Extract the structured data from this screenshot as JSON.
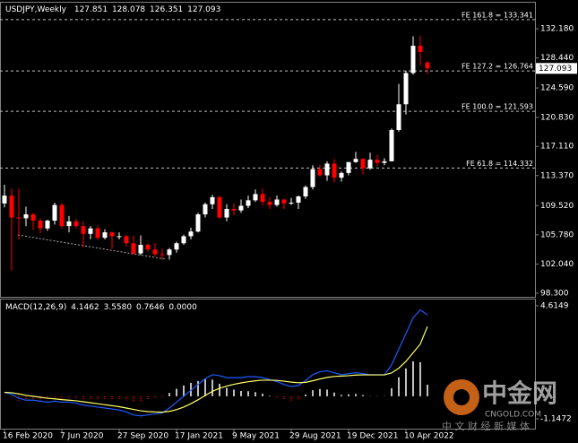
{
  "chart_data": [
    {
      "type": "candlestick",
      "title": "USDJPY,Weekly",
      "categories": [
        "16 Feb 2020",
        null,
        null,
        null,
        null,
        null,
        null,
        null,
        "7 Jun 2020",
        null,
        null,
        null,
        null,
        null,
        null,
        null,
        "27 Sep 2020",
        null,
        null,
        null,
        null,
        null,
        null,
        null,
        "17 Jan 2021",
        null,
        null,
        null,
        null,
        null,
        null,
        null,
        "9 May 2021",
        null,
        null,
        null,
        null,
        null,
        null,
        null,
        "29 Aug 2021",
        null,
        null,
        null,
        null,
        null,
        null,
        null,
        "19 Dec 2021",
        null,
        null,
        null,
        null,
        null,
        null,
        null,
        "10 Apr 2022",
        null,
        null,
        null
      ],
      "open": [
        109.8,
        110.8,
        108.0,
        107.9,
        108.4,
        107.6,
        106.6,
        107.6,
        109.6,
        106.9,
        107.5,
        106.9,
        105.9,
        106.6,
        105.4,
        106.1,
        105.6,
        105.6,
        104.7,
        103.4,
        104.5,
        103.9,
        103.3,
        103.2,
        103.9,
        104.7,
        105.6,
        106.2,
        108.4,
        109.7,
        110.6,
        108.0,
        109.1,
        108.9,
        109.5,
        110.2,
        111.0,
        110.0,
        109.6,
        110.3,
        109.8,
        109.9,
        110.7,
        111.9,
        114.2,
        113.4,
        114.9,
        113.1,
        113.7,
        115.1,
        115.5,
        114.3,
        115.4,
        115.0,
        115.2,
        119.2,
        122.5,
        126.5,
        130.0,
        127.851
      ],
      "high": [
        112.2,
        111.7,
        111.7,
        109.4,
        108.6,
        107.9,
        107.7,
        109.9,
        109.8,
        108.2,
        107.8,
        107.5,
        106.9,
        107.0,
        106.5,
        106.2,
        106.1,
        105.8,
        105.7,
        105.7,
        104.7,
        104.7,
        104.0,
        104.1,
        104.9,
        105.8,
        106.7,
        108.6,
        109.9,
        110.9,
        110.8,
        109.7,
        109.8,
        110.3,
        110.8,
        111.6,
        111.7,
        110.6,
        110.8,
        110.4,
        110.5,
        110.8,
        112.1,
        114.7,
        114.7,
        115.2,
        115.5,
        113.9,
        115.1,
        116.4,
        115.6,
        116.3,
        116.0,
        115.6,
        119.4,
        125.1,
        126.8,
        131.2,
        131.3,
        128.078
      ],
      "low": [
        109.3,
        101.2,
        105.2,
        106.9,
        106.4,
        106.0,
        106.3,
        107.1,
        106.6,
        106.1,
        106.6,
        104.2,
        105.2,
        105.1,
        105.2,
        104.0,
        105.2,
        104.3,
        103.2,
        103.2,
        103.6,
        103.0,
        102.6,
        102.6,
        103.5,
        104.5,
        105.2,
        106.1,
        108.0,
        109.1,
        107.8,
        107.5,
        108.3,
        108.6,
        109.2,
        110.0,
        109.5,
        109.1,
        109.4,
        109.1,
        109.6,
        109.1,
        110.4,
        111.6,
        113.2,
        112.7,
        112.5,
        112.6,
        113.4,
        115.0,
        113.5,
        114.1,
        114.6,
        114.7,
        115.2,
        119.0,
        121.2,
        126.3,
        127.5,
        126.351
      ],
      "close": [
        110.8,
        108.0,
        107.9,
        108.4,
        107.6,
        106.6,
        107.6,
        109.6,
        106.9,
        107.5,
        106.9,
        105.9,
        106.6,
        105.4,
        106.1,
        105.6,
        105.6,
        104.7,
        103.4,
        104.5,
        103.9,
        103.3,
        103.2,
        103.9,
        104.7,
        105.6,
        106.2,
        108.4,
        109.7,
        110.6,
        108.0,
        109.1,
        108.9,
        109.5,
        110.2,
        111.0,
        110.0,
        109.6,
        110.3,
        109.8,
        109.9,
        110.7,
        111.9,
        114.2,
        113.4,
        114.9,
        113.1,
        113.7,
        115.1,
        115.5,
        114.3,
        115.4,
        115.0,
        115.2,
        119.2,
        122.5,
        126.5,
        130.0,
        129.2,
        127.093
      ],
      "up_color": "#ffffff",
      "down_color": "#ff0000",
      "ylim": [
        97.84,
        135.51
      ],
      "yticks": [
        {
          "value": 132.18,
          "label": "132.180"
        },
        {
          "value": 128.44,
          "label": "128.440"
        },
        {
          "value": 124.59,
          "label": "124.590"
        },
        {
          "value": 120.83,
          "label": "120.830"
        },
        {
          "value": 117.11,
          "label": "117.110"
        },
        {
          "value": 113.37,
          "label": "113.370"
        },
        {
          "value": 109.52,
          "label": "109.520"
        },
        {
          "value": 105.78,
          "label": "105.780"
        },
        {
          "value": 102.04,
          "label": "102.040"
        },
        {
          "value": 98.3,
          "label": "98.300"
        }
      ],
      "levels": [
        {
          "value": 133.341,
          "label": "FE 161.8 = 133.341"
        },
        {
          "value": 126.764,
          "label": "FE 127.2 = 126.764"
        },
        {
          "value": 121.593,
          "label": "FE 100.0 = 121.593"
        },
        {
          "value": 114.332,
          "label": "FE 61.8 = 114.332"
        }
      ]
    },
    {
      "type": "macd",
      "title": "MACD(12,26,9)",
      "header_values": [
        "4.1462",
        "3.5580",
        "0.7646",
        "0.0000"
      ],
      "histogram": {
        "positive_color": "#ffffff",
        "negative_color": "#ff0000",
        "values": [
          0.0,
          -0.08,
          -0.22,
          -0.25,
          -0.2,
          -0.2,
          -0.2,
          -0.12,
          -0.13,
          -0.1,
          -0.12,
          -0.17,
          -0.17,
          -0.17,
          -0.17,
          -0.17,
          -0.17,
          -0.2,
          -0.28,
          -0.26,
          -0.17,
          -0.1,
          -0.04,
          0.17,
          0.38,
          0.55,
          0.68,
          0.78,
          0.86,
          0.85,
          0.64,
          0.43,
          0.34,
          0.27,
          0.26,
          0.21,
          0.13,
          0.03,
          -0.06,
          -0.17,
          -0.22,
          -0.14,
          0.09,
          0.31,
          0.37,
          0.34,
          0.19,
          0.07,
          0.1,
          0.12,
          0.06,
          0.01,
          0.01,
          0.01,
          0.41,
          0.97,
          1.42,
          1.78,
          1.74,
          0.59
        ]
      },
      "lines": [
        {
          "color": "#1e5bff",
          "values": [
            0.2,
            0.1,
            -0.1,
            -0.2,
            -0.2,
            -0.25,
            -0.3,
            -0.25,
            -0.3,
            -0.3,
            -0.35,
            -0.45,
            -0.5,
            -0.55,
            -0.6,
            -0.65,
            -0.7,
            -0.8,
            -0.95,
            -1.0,
            -0.95,
            -0.9,
            -0.85,
            -0.6,
            -0.3,
            0.0,
            0.3,
            0.6,
            0.9,
            1.1,
            1.05,
            0.95,
            0.95,
            0.95,
            1.0,
            1.0,
            0.95,
            0.85,
            0.75,
            0.6,
            0.5,
            0.55,
            0.8,
            1.1,
            1.25,
            1.3,
            1.2,
            1.1,
            1.15,
            1.2,
            1.15,
            1.1,
            1.1,
            1.1,
            1.6,
            2.4,
            3.2,
            4.0,
            4.4,
            4.1462
          ]
        },
        {
          "color": "#ffff66",
          "values": [
            0.2,
            0.18,
            0.12,
            0.05,
            0.0,
            -0.05,
            -0.1,
            -0.13,
            -0.17,
            -0.2,
            -0.23,
            -0.28,
            -0.33,
            -0.38,
            -0.43,
            -0.48,
            -0.53,
            -0.6,
            -0.67,
            -0.74,
            -0.78,
            -0.8,
            -0.81,
            -0.77,
            -0.68,
            -0.55,
            -0.38,
            -0.18,
            0.04,
            0.25,
            0.41,
            0.52,
            0.61,
            0.68,
            0.74,
            0.79,
            0.82,
            0.82,
            0.81,
            0.77,
            0.72,
            0.69,
            0.71,
            0.79,
            0.88,
            0.96,
            1.01,
            1.03,
            1.05,
            1.08,
            1.09,
            1.09,
            1.09,
            1.09,
            1.19,
            1.43,
            1.78,
            2.22,
            2.66,
            3.558
          ]
        }
      ],
      "ylim": [
        -1.65,
        4.84
      ],
      "yticks": [
        4.6149,
        -1.1472
      ]
    }
  ],
  "watermark": {
    "brand": "中金网",
    "domain": "CNGOLD.COM",
    "tagline": "中 文 财 经 新 媒 体"
  }
}
